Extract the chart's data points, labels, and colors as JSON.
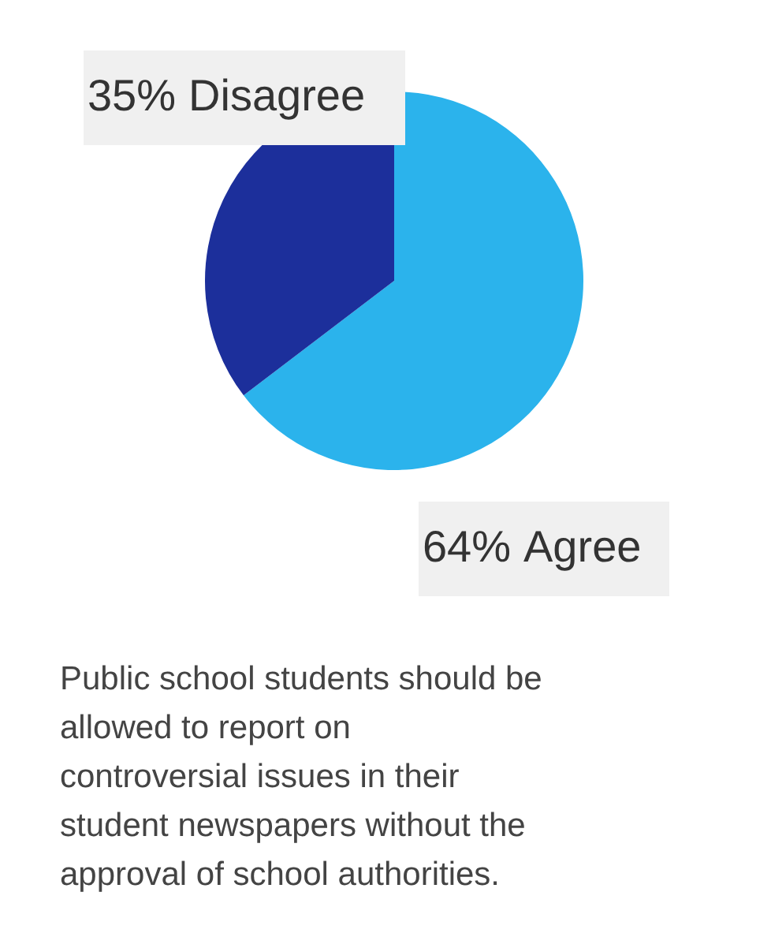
{
  "chart_data": {
    "type": "pie",
    "categories": [
      "Agree",
      "Disagree"
    ],
    "values": [
      64,
      35
    ],
    "colors": [
      "#2bb3ec",
      "#1c2f9b"
    ],
    "value_labels": [
      "64%",
      "35%"
    ],
    "annotations": [
      "Public school students should be allowed to report on controversial issues in their student newspapers without the approval of school authorities."
    ],
    "title": null
  }
}
